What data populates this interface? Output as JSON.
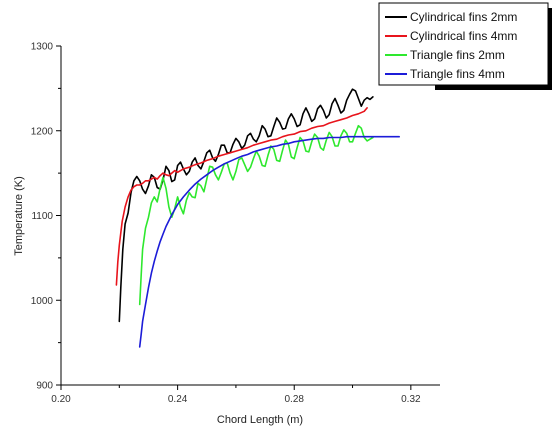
{
  "chart_data": {
    "type": "line",
    "xlabel": "Chord Length (m)",
    "ylabel": "Temperature (K)",
    "xlim": [
      0.2,
      0.33
    ],
    "ylim": [
      900,
      1300
    ],
    "xticks": [
      "0.20",
      "0.24",
      "0.28",
      "0.32"
    ],
    "xtick_values": [
      0.2,
      0.24,
      0.28,
      0.32
    ],
    "yticks": [
      "900",
      "1000",
      "1100",
      "1200",
      "1300"
    ],
    "ytick_values": [
      900,
      1000,
      1100,
      1200,
      1300
    ],
    "grid": false,
    "legend_position": "top-right",
    "series": [
      {
        "name": "Cylindrical fins 2mm",
        "color": "#000000",
        "x": [
          0.22,
          0.2205,
          0.2212,
          0.222,
          0.223,
          0.224,
          0.225,
          0.226,
          0.227,
          0.228,
          0.229,
          0.23,
          0.231,
          0.232,
          0.233,
          0.234,
          0.235,
          0.236,
          0.237,
          0.238,
          0.239,
          0.24,
          0.241,
          0.242,
          0.243,
          0.244,
          0.245,
          0.246,
          0.247,
          0.248,
          0.249,
          0.25,
          0.251,
          0.252,
          0.253,
          0.254,
          0.255,
          0.256,
          0.257,
          0.258,
          0.259,
          0.26,
          0.261,
          0.262,
          0.263,
          0.264,
          0.265,
          0.266,
          0.267,
          0.268,
          0.269,
          0.27,
          0.271,
          0.272,
          0.273,
          0.274,
          0.275,
          0.276,
          0.277,
          0.278,
          0.279,
          0.28,
          0.281,
          0.282,
          0.283,
          0.284,
          0.285,
          0.286,
          0.287,
          0.288,
          0.289,
          0.29,
          0.291,
          0.292,
          0.293,
          0.294,
          0.295,
          0.296,
          0.297,
          0.298,
          0.299,
          0.3,
          0.301,
          0.302,
          0.303,
          0.304,
          0.305,
          0.306,
          0.307
        ],
        "y": [
          975,
          1015,
          1060,
          1090,
          1103,
          1127,
          1141,
          1146,
          1141,
          1131,
          1126,
          1135,
          1148,
          1145,
          1133,
          1131,
          1142,
          1158,
          1153,
          1140,
          1142,
          1159,
          1163,
          1155,
          1148,
          1152,
          1163,
          1168,
          1159,
          1155,
          1164,
          1174,
          1177,
          1168,
          1164,
          1172,
          1183,
          1183,
          1174,
          1174,
          1184,
          1191,
          1187,
          1179,
          1183,
          1194,
          1197,
          1190,
          1187,
          1194,
          1206,
          1202,
          1193,
          1194,
          1205,
          1215,
          1210,
          1202,
          1203,
          1214,
          1220,
          1214,
          1205,
          1207,
          1220,
          1227,
          1220,
          1211,
          1214,
          1226,
          1230,
          1224,
          1215,
          1219,
          1232,
          1238,
          1230,
          1221,
          1224,
          1236,
          1243,
          1249,
          1247,
          1238,
          1229,
          1236,
          1239,
          1237,
          1240
        ]
      },
      {
        "name": "Cylindrical fins 4mm",
        "color": "#e8141c",
        "x": [
          0.219,
          0.2195,
          0.22,
          0.221,
          0.222,
          0.223,
          0.224,
          0.225,
          0.226,
          0.227,
          0.228,
          0.229,
          0.23,
          0.231,
          0.232,
          0.233,
          0.234,
          0.235,
          0.236,
          0.237,
          0.238,
          0.239,
          0.24,
          0.242,
          0.244,
          0.246,
          0.248,
          0.25,
          0.252,
          0.254,
          0.256,
          0.258,
          0.26,
          0.262,
          0.264,
          0.266,
          0.268,
          0.27,
          0.272,
          0.274,
          0.276,
          0.278,
          0.28,
          0.282,
          0.284,
          0.286,
          0.288,
          0.29,
          0.292,
          0.294,
          0.296,
          0.298,
          0.3,
          0.302,
          0.304,
          0.305
        ],
        "y": [
          1018,
          1045,
          1065,
          1093,
          1110,
          1122,
          1130,
          1134,
          1136,
          1136,
          1138,
          1141,
          1141,
          1143,
          1145,
          1143,
          1147,
          1150,
          1148,
          1147,
          1150,
          1153,
          1151,
          1155,
          1157,
          1160,
          1162,
          1165,
          1167,
          1170,
          1172,
          1174,
          1176,
          1178,
          1180,
          1183,
          1185,
          1187,
          1189,
          1190,
          1193,
          1195,
          1196,
          1199,
          1200,
          1203,
          1205,
          1206,
          1209,
          1211,
          1213,
          1215,
          1218,
          1220,
          1223,
          1227
        ]
      },
      {
        "name": "Triangle fins 2mm",
        "color": "#2ee82e",
        "x": [
          0.227,
          0.2275,
          0.228,
          0.229,
          0.23,
          0.231,
          0.232,
          0.233,
          0.234,
          0.235,
          0.236,
          0.237,
          0.238,
          0.239,
          0.24,
          0.241,
          0.242,
          0.243,
          0.244,
          0.245,
          0.246,
          0.247,
          0.248,
          0.249,
          0.25,
          0.251,
          0.252,
          0.253,
          0.254,
          0.255,
          0.256,
          0.257,
          0.258,
          0.259,
          0.26,
          0.261,
          0.262,
          0.263,
          0.264,
          0.265,
          0.266,
          0.267,
          0.268,
          0.269,
          0.27,
          0.271,
          0.272,
          0.273,
          0.274,
          0.275,
          0.276,
          0.277,
          0.278,
          0.279,
          0.28,
          0.281,
          0.282,
          0.283,
          0.284,
          0.285,
          0.286,
          0.287,
          0.288,
          0.289,
          0.29,
          0.291,
          0.292,
          0.293,
          0.294,
          0.295,
          0.296,
          0.297,
          0.298,
          0.299,
          0.3,
          0.301,
          0.302,
          0.303,
          0.304,
          0.305,
          0.306,
          0.307
        ],
        "y": [
          995,
          1030,
          1060,
          1085,
          1098,
          1115,
          1122,
          1116,
          1132,
          1145,
          1132,
          1110,
          1098,
          1108,
          1122,
          1110,
          1102,
          1118,
          1127,
          1122,
          1121,
          1138,
          1135,
          1128,
          1143,
          1158,
          1157,
          1148,
          1142,
          1151,
          1161,
          1162,
          1150,
          1142,
          1152,
          1166,
          1168,
          1160,
          1152,
          1157,
          1167,
          1176,
          1170,
          1159,
          1158,
          1171,
          1182,
          1178,
          1165,
          1164,
          1177,
          1189,
          1184,
          1169,
          1167,
          1180,
          1192,
          1188,
          1176,
          1175,
          1187,
          1196,
          1192,
          1180,
          1177,
          1189,
          1198,
          1193,
          1182,
          1182,
          1194,
          1201,
          1197,
          1187,
          1187,
          1197,
          1206,
          1203,
          1192,
          1188,
          1190,
          1192
        ]
      },
      {
        "name": "Triangle fins 4mm",
        "color": "#1c1cd8",
        "x": [
          0.227,
          0.2275,
          0.228,
          0.229,
          0.23,
          0.231,
          0.232,
          0.233,
          0.234,
          0.235,
          0.236,
          0.237,
          0.238,
          0.239,
          0.24,
          0.242,
          0.244,
          0.246,
          0.248,
          0.25,
          0.252,
          0.254,
          0.256,
          0.258,
          0.26,
          0.262,
          0.264,
          0.266,
          0.268,
          0.27,
          0.272,
          0.274,
          0.276,
          0.278,
          0.28,
          0.282,
          0.284,
          0.286,
          0.288,
          0.29,
          0.292,
          0.294,
          0.296,
          0.298,
          0.3,
          0.302,
          0.304,
          0.306,
          0.308,
          0.31,
          0.312,
          0.314,
          0.316
        ],
        "y": [
          945,
          960,
          975,
          995,
          1015,
          1032,
          1046,
          1058,
          1069,
          1078,
          1087,
          1094,
          1101,
          1107,
          1113,
          1122,
          1130,
          1137,
          1143,
          1148,
          1153,
          1157,
          1161,
          1164,
          1167,
          1170,
          1172,
          1175,
          1177,
          1179,
          1181,
          1182,
          1184,
          1185,
          1187,
          1188,
          1189,
          1190,
          1191,
          1191,
          1192,
          1192,
          1192,
          1193,
          1193,
          1193,
          1193,
          1193,
          1193,
          1193,
          1193,
          1193,
          1193
        ]
      }
    ]
  }
}
